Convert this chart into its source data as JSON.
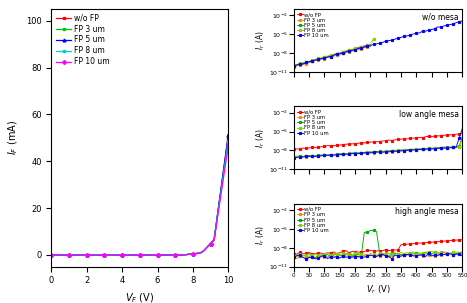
{
  "left_plot": {
    "xlabel": "V_F (V)",
    "ylabel": "I_F (mA)",
    "xlim": [
      0,
      10
    ],
    "ylim": [
      -5,
      105
    ],
    "legend": [
      "w/o FP",
      "FP 3 um",
      "FP 5 um",
      "FP 8 um",
      "FP 10 um"
    ],
    "colors": [
      "#ff0000",
      "#00cc00",
      "#0000ff",
      "#00cccc",
      "#ff00ff"
    ],
    "markers": [
      "s",
      "s",
      "^",
      "s",
      "D"
    ]
  },
  "right_plots": [
    {
      "title": "w/o mesa",
      "ylabel": "I_r (A)",
      "xlim": [
        0,
        550
      ],
      "ylim_log": [
        -11,
        -1
      ],
      "legend": [
        "w/o FP",
        "FP 3 um",
        "FP 5 um",
        "FP 8 um",
        "FP 10 um"
      ],
      "colors": [
        "#ff0000",
        "#ff8800",
        "#00aa00",
        "#88cc00",
        "#0000ff"
      ],
      "markers": [
        "s",
        "s",
        "s",
        "s",
        "s"
      ],
      "wom_bases": [
        -10.1,
        -10.15,
        -10.0,
        -9.95,
        -10.05
      ],
      "wom_slopes": [
        0.014,
        0.013,
        0.014,
        0.013,
        0.013
      ],
      "spike_idx": 2,
      "spike_v": 250,
      "spike_mag": 1.2
    },
    {
      "title": "low angle mesa",
      "ylabel": "I_r (A)",
      "xlim": [
        0,
        550
      ],
      "ylim_log": [
        -11,
        -1
      ],
      "legend": [
        "w/o FP",
        "FP 3 um",
        "FP 5 um",
        "FP 8 um",
        "FP 10 um"
      ],
      "colors": [
        "#ff0000",
        "#ff8800",
        "#00aa00",
        "#88cc00",
        "#0000ff"
      ],
      "markers": [
        "s",
        "s",
        "s",
        "s",
        "s"
      ]
    },
    {
      "title": "high angle mesa",
      "xlabel": "V_r (V)",
      "ylabel": "I_r (A)",
      "xlim": [
        0,
        550
      ],
      "ylim_log": [
        -11,
        -1
      ],
      "legend": [
        "w/o FP",
        "FP 3 um",
        "FP 5 um",
        "FP 8 um",
        "FP 10 um"
      ],
      "colors": [
        "#ff0000",
        "#ff8800",
        "#00aa00",
        "#88cc00",
        "#0000ff"
      ],
      "markers": [
        "s",
        "s",
        "s",
        "s",
        "s"
      ]
    }
  ]
}
